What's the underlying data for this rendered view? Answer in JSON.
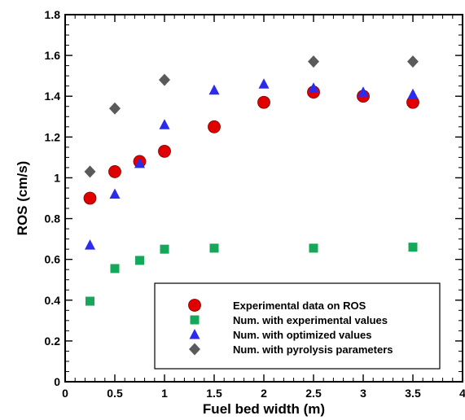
{
  "chart_data": {
    "type": "scatter",
    "xlabel": "Fuel bed width (m)",
    "ylabel": "ROS (cm/s)",
    "xlim": [
      0,
      4
    ],
    "ylim": [
      0,
      1.8
    ],
    "x_ticks": [
      0,
      0.5,
      1,
      1.5,
      2,
      2.5,
      3,
      3.5,
      4
    ],
    "x_tick_labels": [
      "0",
      "0.5",
      "1",
      "1.5",
      "2",
      "2.5",
      "3",
      "3.5",
      "4"
    ],
    "y_ticks": [
      0,
      0.2,
      0.4,
      0.6,
      0.8,
      1,
      1.2,
      1.4,
      1.6,
      1.8
    ],
    "y_tick_labels": [
      "0",
      "0.2",
      "0.4",
      "0.6",
      "0.8",
      "1",
      "1.2",
      "1.4",
      "1.6",
      "1.8"
    ],
    "grid": false,
    "legend_position": "bottom-right",
    "series": [
      {
        "name": "Experimental data on ROS",
        "marker": "circle",
        "color": "#e00000",
        "x": [
          0.25,
          0.5,
          0.75,
          1,
          1.5,
          2,
          2.5,
          3,
          3.5
        ],
        "y": [
          0.9,
          1.03,
          1.08,
          1.13,
          1.25,
          1.37,
          1.42,
          1.4,
          1.37
        ]
      },
      {
        "name": "Num. with experimental values",
        "marker": "square",
        "color": "#16a85a",
        "x": [
          0.25,
          0.5,
          0.75,
          1,
          1.5,
          2.5,
          3.5
        ],
        "y": [
          0.395,
          0.555,
          0.595,
          0.65,
          0.655,
          0.655,
          0.66
        ]
      },
      {
        "name": "Num. with optimized values",
        "marker": "triangle",
        "color": "#2b2bf0",
        "x": [
          0.25,
          0.5,
          0.75,
          1,
          1.5,
          2,
          2.5,
          3,
          3.5
        ],
        "y": [
          0.67,
          0.92,
          1.07,
          1.26,
          1.43,
          1.46,
          1.44,
          1.42,
          1.41
        ]
      },
      {
        "name": "Num. with pyrolysis parameters",
        "marker": "diamond",
        "color": "#5a5a5a",
        "x": [
          0.25,
          0.5,
          1,
          2.5,
          3.5
        ],
        "y": [
          1.03,
          1.34,
          1.48,
          1.57,
          1.57
        ]
      }
    ]
  }
}
